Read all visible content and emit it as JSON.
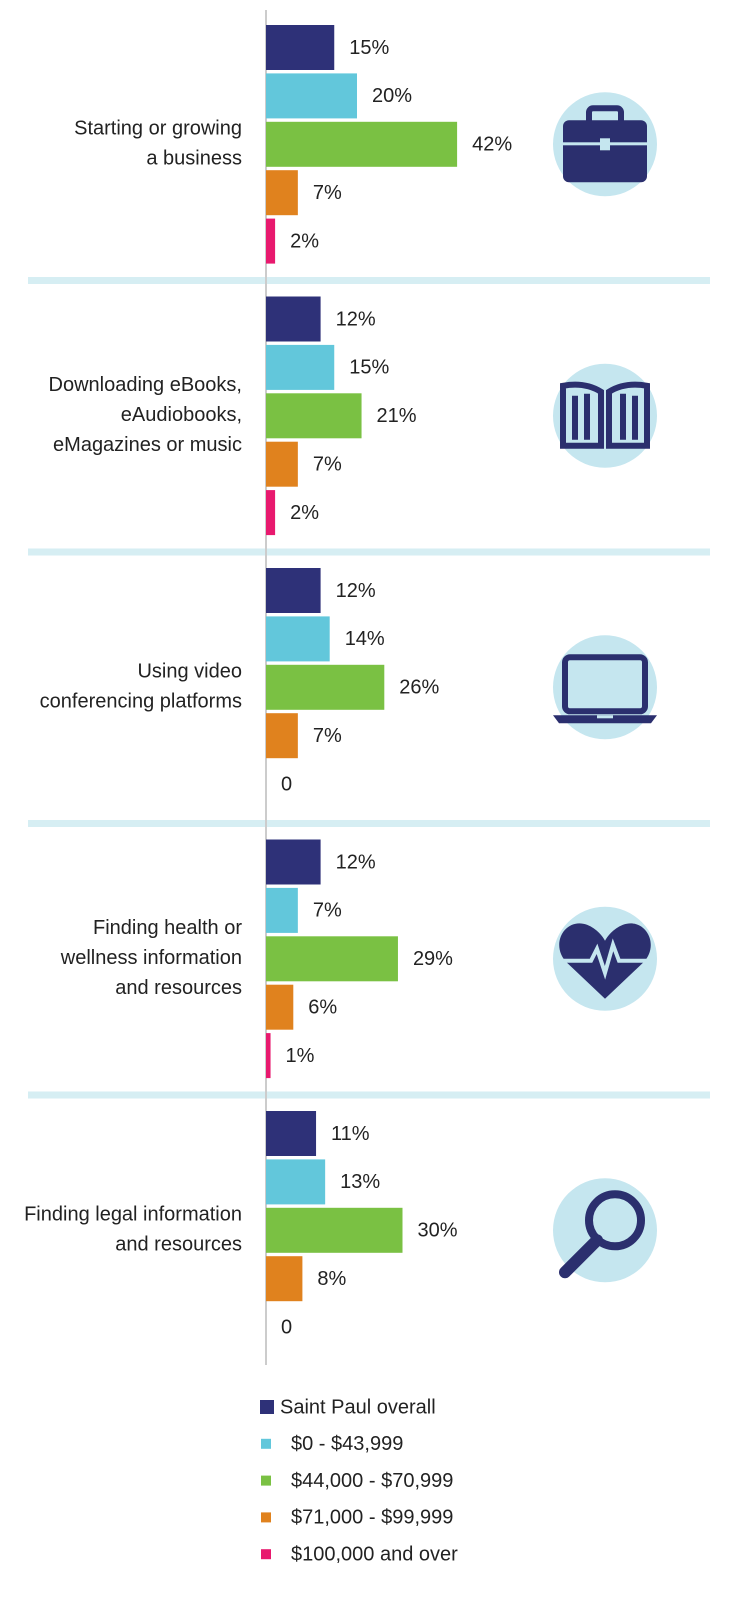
{
  "chart_data": {
    "type": "bar",
    "orientation": "horizontal",
    "categories": [
      [
        "Starting or growing",
        "a business"
      ],
      [
        "Downloading eBooks,",
        "eAudiobooks,",
        "eMagazines or music"
      ],
      [
        "Using video",
        "conferencing platforms"
      ],
      [
        "Finding health or",
        "wellness information",
        "and resources"
      ],
      [
        "Finding legal information",
        "and resources"
      ]
    ],
    "series": [
      {
        "name": "Saint Paul overall",
        "color": "#2e3178",
        "values": [
          15,
          12,
          12,
          12,
          11
        ],
        "value_labels": [
          "15%",
          "12%",
          "12%",
          "12%",
          "11%"
        ]
      },
      {
        "name": "$0 - $43,999",
        "color": "#62c7db",
        "values": [
          20,
          15,
          14,
          7,
          13
        ],
        "value_labels": [
          "20%",
          "15%",
          "14%",
          "7%",
          "13%"
        ]
      },
      {
        "name": "$44,000 - $70,999",
        "color": "#7ac143",
        "values": [
          42,
          21,
          26,
          29,
          30
        ],
        "value_labels": [
          "42%",
          "21%",
          "26%",
          "29%",
          "30%"
        ]
      },
      {
        "name": "$71,000 - $99,999",
        "color": "#e0821e",
        "values": [
          7,
          7,
          7,
          6,
          8
        ],
        "value_labels": [
          "7%",
          "7%",
          "7%",
          "6%",
          "8%"
        ]
      },
      {
        "name": "$100,000 and over",
        "color": "#e8196e",
        "values": [
          2,
          2,
          0,
          1,
          0
        ],
        "value_labels": [
          "2%",
          "2%",
          "0",
          "1%",
          "0"
        ]
      }
    ]
  }
}
